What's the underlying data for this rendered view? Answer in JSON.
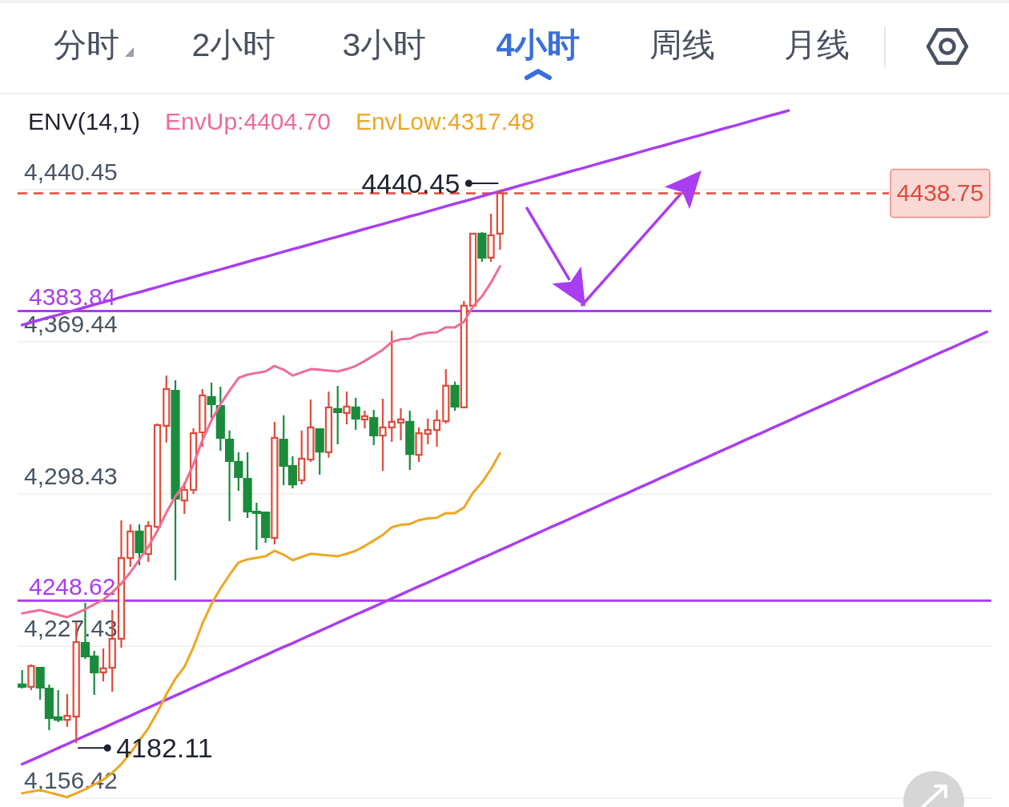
{
  "chart_data": {
    "type": "candlestick",
    "title": "4小时",
    "annotations": [
      "分时",
      "2小时",
      "3小时",
      "周线",
      "月线",
      {
        "text": "4440.45",
        "y": 4440.45
      },
      "4182.11"
    ],
    "legend_title": "ENV(14,1)",
    "legend": "top left",
    "tick_labels": "y",
    "grid": "y",
    "categories": [
      null,
      null,
      null,
      null,
      null,
      null,
      null,
      null,
      null,
      null,
      null,
      null,
      null,
      null,
      null,
      null,
      null,
      null,
      null,
      null,
      null,
      null,
      null,
      null,
      null,
      null,
      null,
      null,
      null,
      null,
      null,
      null,
      null,
      null,
      null,
      null,
      null,
      null,
      null,
      null,
      null,
      null,
      null,
      null,
      null,
      null,
      null,
      null,
      null,
      null,
      null,
      null,
      null,
      null,
      null,
      null,
      null,
      null,
      null,
      null,
      null,
      null,
      null,
      null,
      null,
      null,
      null,
      null,
      null,
      null,
      null,
      null,
      null,
      null,
      null,
      null,
      null,
      null,
      null,
      null,
      null,
      null,
      null,
      null,
      null,
      null,
      null,
      null,
      null,
      null,
      null,
      null,
      null,
      null,
      null,
      null,
      null,
      null,
      null,
      null,
      null,
      null,
      null,
      null,
      null,
      null,
      null,
      null
    ],
    "ohlc": [
      [
        4209.5,
        4216.2,
        4207.6,
        4208.4
      ],
      [
        4208.4,
        4218.8,
        4206.9,
        4218.1
      ],
      [
        4217.3,
        4217.3,
        4202.4,
        4208.0
      ],
      [
        4207.6,
        4209.5,
        4188.2,
        4193.8
      ],
      [
        4194.2,
        4206.9,
        4191.9,
        4193.0
      ],
      [
        4193.0,
        4205.0,
        4189.7,
        4194.9
      ],
      [
        4194.5,
        4238.6,
        4182.11,
        4229.3
      ],
      [
        4228.9,
        4247.6,
        4221.4,
        4222.6
      ],
      [
        4222.6,
        4225.2,
        4204.6,
        4215.1
      ],
      [
        4215.1,
        4226.3,
        4211.0,
        4217.0
      ],
      [
        4217.3,
        4244.2,
        4206.1,
        4230.8
      ],
      [
        4230.8,
        4286.1,
        4226.7,
        4268.5
      ],
      [
        4268.5,
        4284.2,
        4264.4,
        4280.9
      ],
      [
        4280.9,
        4284.2,
        4265.2,
        4271.2
      ],
      [
        4270.4,
        4285.7,
        4266.7,
        4283.5
      ],
      [
        4283.1,
        4331.3,
        4282.4,
        4330.6
      ],
      [
        4330.2,
        4353.7,
        4322.4,
        4347.4
      ],
      [
        4346.6,
        4351.5,
        4258.1,
        4296.2
      ],
      [
        4295.4,
        4304.0,
        4289.1,
        4300.3
      ],
      [
        4300.3,
        4329.1,
        4298.4,
        4326.8
      ],
      [
        4327.2,
        4347.4,
        4320.5,
        4344.4
      ],
      [
        4343.7,
        4350.4,
        4333.9,
        4340.3
      ],
      [
        4339.5,
        4348.5,
        4318.6,
        4324.6
      ],
      [
        4323.8,
        4328.0,
        4285.7,
        4313.8
      ],
      [
        4313.4,
        4317.9,
        4299.9,
        4306.3
      ],
      [
        4305.5,
        4317.9,
        4287.2,
        4290.2
      ],
      [
        4290.2,
        4294.3,
        4272.3,
        4289.5
      ],
      [
        4289.8,
        4290.2,
        4275.6,
        4278.3
      ],
      [
        4277.9,
        4332.1,
        4274.9,
        4324.6
      ],
      [
        4323.8,
        4335.1,
        4302.5,
        4311.5
      ],
      [
        4311.5,
        4316.0,
        4301.0,
        4302.9
      ],
      [
        4304.8,
        4328.0,
        4302.9,
        4314.9
      ],
      [
        4314.5,
        4342.5,
        4313.4,
        4329.5
      ],
      [
        4328.7,
        4329.1,
        4307.4,
        4318.2
      ],
      [
        4317.9,
        4346.3,
        4315.3,
        4338.8
      ],
      [
        4338.1,
        4348.9,
        4321.6,
        4336.6
      ],
      [
        4336.2,
        4346.3,
        4330.9,
        4339.2
      ],
      [
        4338.8,
        4343.3,
        4328.3,
        4333.6
      ],
      [
        4333.2,
        4337.3,
        4329.1,
        4334.7
      ],
      [
        4333.9,
        4337.7,
        4321.2,
        4325.7
      ],
      [
        4325.7,
        4342.9,
        4309.3,
        4329.5
      ],
      [
        4329.5,
        4374.7,
        4322.7,
        4332.1
      ],
      [
        4331.7,
        4338.4,
        4323.5,
        4333.2
      ],
      [
        4332.1,
        4337.3,
        4309.6,
        4317.1
      ],
      [
        4316.7,
        4329.5,
        4313.4,
        4326.8
      ],
      [
        4326.5,
        4333.6,
        4321.6,
        4328.3
      ],
      [
        4328.3,
        4337.7,
        4320.5,
        4332.8
      ],
      [
        4332.4,
        4356.7,
        4331.3,
        4348.9
      ],
      [
        4348.9,
        4350.8,
        4337.3,
        4339.2
      ],
      [
        4338.8,
        4388.5,
        4338.4,
        4386.3
      ],
      [
        4386.3,
        4419.9,
        4385.5,
        4419.9
      ],
      [
        4419.9,
        4420.6,
        4406.8,
        4408.7
      ],
      [
        4408.7,
        4429.2,
        4406.8,
        4419.2
      ],
      [
        4419.9,
        4440.45,
        4412.4,
        4438.75
      ],
      null,
      null,
      null,
      null,
      null,
      null,
      null,
      null,
      null,
      null,
      null,
      null,
      null,
      null,
      null,
      null,
      null,
      null,
      null,
      null,
      null,
      null,
      null,
      null,
      null,
      null,
      null,
      null,
      null,
      null,
      null,
      null,
      null,
      null,
      null,
      null,
      null,
      null,
      null,
      null,
      null,
      null,
      null,
      null,
      null,
      null,
      null,
      null,
      null,
      null,
      null,
      null,
      null,
      null
    ],
    "colors": [
      "#1a8c3c",
      "#e04b3a",
      "#1a8c3c",
      "#1a8c3c",
      "#1a8c3c",
      "#e04b3a",
      "#e04b3a",
      "#1a8c3c",
      "#1a8c3c",
      "#e04b3a",
      "#e04b3a",
      "#e04b3a",
      "#e04b3a",
      "#1a8c3c",
      "#e04b3a",
      "#e04b3a",
      "#e04b3a",
      "#1a8c3c",
      "#e04b3a",
      "#e04b3a",
      "#e04b3a",
      "#1a8c3c",
      "#1a8c3c",
      "#1a8c3c",
      "#1a8c3c",
      "#1a8c3c",
      "#1a8c3c",
      "#1a8c3c",
      "#e04b3a",
      "#1a8c3c",
      "#1a8c3c",
      "#e04b3a",
      "#e04b3a",
      "#1a8c3c",
      "#e04b3a",
      "#1a8c3c",
      "#e04b3a",
      "#1a8c3c",
      "#e04b3a",
      "#1a8c3c",
      "#e04b3a",
      "#e04b3a",
      "#e04b3a",
      "#1a8c3c",
      "#e04b3a",
      "#e04b3a",
      "#e04b3a",
      "#e04b3a",
      "#1a8c3c",
      "#e04b3a",
      "#e04b3a",
      "#1a8c3c",
      "#e04b3a",
      "#e04b3a",
      null,
      null,
      null,
      null,
      null,
      null,
      null,
      null,
      null,
      null,
      null,
      null,
      null,
      null,
      null,
      null,
      null,
      null,
      null,
      null,
      null,
      null,
      null,
      null,
      null,
      null,
      null,
      null,
      null,
      null,
      null,
      null,
      null,
      null,
      null,
      null,
      null,
      null,
      null,
      null,
      null,
      null,
      null,
      null,
      null,
      null,
      null,
      null,
      null,
      null,
      null,
      null,
      null,
      null
    ],
    "series": [
      {
        "name": "EnvUp:4404.70",
        "type": "line",
        "color": "#ef6d95",
        "values": [
          4242.7,
          4243.5,
          4244.2,
          4243.1,
          4242.0,
          4240.9,
          4242.7,
          4244.6,
          4246.9,
          4249.1,
          4252.5,
          4256.6,
          4261.8,
          4267.8,
          4273.8,
          4281.2,
          4289.8,
          4297.3,
          4302.9,
          4312.3,
          4323.5,
          4332.8,
          4340.3,
          4346.6,
          4352.6,
          4354.1,
          4354.9,
          4355.6,
          4358.2,
          4356.4,
          4353.7,
          4355.2,
          4356.7,
          4356.4,
          4356.0,
          4355.6,
          4356.7,
          4358.2,
          4360.5,
          4363.1,
          4365.7,
          4369.4,
          4370.6,
          4370.9,
          4372.8,
          4373.6,
          4373.9,
          4376.2,
          4376.2,
          4378.8,
          4385.9,
          4390.7,
          4397.1,
          4404.7,
          null,
          null,
          null,
          null,
          null,
          null,
          null,
          null,
          null,
          null,
          null,
          null,
          null,
          null,
          null,
          null,
          null,
          null,
          null,
          null,
          null,
          null,
          null,
          null,
          null,
          null,
          null,
          null,
          null,
          null,
          null,
          null,
          null,
          null,
          null,
          null,
          null,
          null,
          null,
          null,
          null,
          null,
          null,
          null,
          null,
          null,
          null,
          null,
          null,
          null,
          null,
          null,
          null,
          null
        ]
      },
      {
        "name": "EnvLow:4317.48",
        "type": "line",
        "color": "#eca723",
        "values": [
          4158.7,
          4159.5,
          4160.2,
          4159.1,
          4158.0,
          4156.9,
          4158.7,
          4160.6,
          4162.8,
          4165.0,
          4168.3,
          4172.3,
          4177.4,
          4183.3,
          4189.1,
          4196.5,
          4204.9,
          4212.2,
          4217.7,
          4226.9,
          4237.9,
          4247.0,
          4254.3,
          4260.6,
          4266.4,
          4267.9,
          4268.6,
          4269.4,
          4271.9,
          4270.1,
          4267.5,
          4269.0,
          4270.5,
          4270.1,
          4269.7,
          4269.4,
          4270.5,
          4271.9,
          4274.1,
          4276.7,
          4279.3,
          4282.9,
          4284.0,
          4284.4,
          4286.2,
          4287.0,
          4287.3,
          4289.5,
          4289.5,
          4292.1,
          4299.0,
          4303.8,
          4310.0,
          4317.48,
          null,
          null,
          null,
          null,
          null,
          null,
          null,
          null,
          null,
          null,
          null,
          null,
          null,
          null,
          null,
          null,
          null,
          null,
          null,
          null,
          null,
          null,
          null,
          null,
          null,
          null,
          null,
          null,
          null,
          null,
          null,
          null,
          null,
          null,
          null,
          null,
          null,
          null,
          null,
          null,
          null,
          null,
          null,
          null,
          null,
          null,
          null,
          null,
          null,
          null,
          null,
          null,
          null,
          null
        ]
      },
      {
        "type": "line",
        "color": "#a93ef0",
        "values": [
          4377.3,
          4378.5,
          4379.7,
          4380.9,
          4382.0,
          4383.2,
          4384.4,
          4385.6,
          4386.8,
          4387.9,
          4389.1,
          4390.3,
          4391.5,
          4392.6,
          4393.8,
          4395.0,
          4396.2,
          4397.4,
          4398.5,
          4399.7,
          4400.9,
          4402.1,
          4403.2,
          4404.4,
          4405.6,
          4406.8,
          4408.0,
          4409.1,
          4410.3,
          4411.5,
          4412.7,
          4413.8,
          4415.0,
          4416.2,
          4417.4,
          4418.5,
          4419.7,
          4420.9,
          4422.1,
          4423.3,
          4424.4,
          4425.6,
          4426.8,
          4428.0,
          4429.1,
          4430.3,
          4431.5,
          4432.7,
          4433.9,
          4435.0,
          4436.2,
          4437.4,
          4438.6,
          4439.7,
          4440.9,
          4442.1,
          4443.3,
          4444.4,
          4445.6,
          4446.8,
          4448.0,
          4449.2,
          4450.3,
          4451.5,
          4452.7,
          4453.9,
          4455.0,
          4456.2,
          4457.4,
          4458.6,
          4459.8,
          4460.9,
          4462.1,
          4463.3,
          4464.5,
          4465.6,
          4466.8,
          4468.0,
          4469.2,
          4470.3,
          4471.5,
          4472.7,
          4473.9,
          4475.1,
          4476.2,
          4477.4,
          null,
          null,
          null,
          null,
          null,
          null,
          null,
          null,
          null,
          null,
          null,
          null,
          null,
          null,
          null,
          null,
          null,
          null,
          null,
          null,
          null,
          null
        ]
      },
      {
        "type": "line",
        "color": "#a93ef0",
        "values": [
          4172.3,
          4174.1,
          4176.0,
          4177.9,
          4179.8,
          4181.7,
          4183.6,
          4185.5,
          4187.4,
          4189.2,
          4191.1,
          4193.0,
          4194.9,
          4196.8,
          4198.7,
          4200.6,
          4202.4,
          4204.3,
          4206.2,
          4208.1,
          4210.0,
          4211.9,
          4213.8,
          4215.6,
          4217.5,
          4219.4,
          4221.3,
          4223.2,
          4225.1,
          4227.0,
          4228.8,
          4230.7,
          4232.6,
          4234.5,
          4236.4,
          4238.3,
          4240.2,
          4242.1,
          4243.9,
          4245.8,
          4247.7,
          4249.6,
          4251.5,
          4253.4,
          4255.3,
          4257.1,
          4259.0,
          4260.9,
          4262.8,
          4264.7,
          4266.6,
          4268.5,
          4270.3,
          4272.2,
          4274.1,
          4276.0,
          4277.9,
          4279.8,
          4281.7,
          4283.6,
          4285.4,
          4287.3,
          4289.2,
          4291.1,
          4293.0,
          4294.9,
          4296.8,
          4298.6,
          4300.5,
          4302.4,
          4304.3,
          4306.2,
          4308.1,
          4310.0,
          4311.8,
          4313.7,
          4315.6,
          4317.5,
          4319.4,
          4321.3,
          4323.2,
          4325.1,
          4326.9,
          4328.8,
          4330.7,
          4332.6,
          4334.5,
          4336.4,
          4338.3,
          4340.1,
          4342.0,
          4343.9,
          4345.8,
          4347.7,
          4349.6,
          4351.5,
          4353.3,
          4355.2,
          4357.1,
          4359.0,
          4360.9,
          4362.8,
          4364.7,
          4366.5,
          4368.4,
          4370.3,
          4372.2,
          4374.1
        ]
      }
    ],
    "ylim": [
      4156.42,
      4484.9
    ],
    "yticks": [
      {
        "value": 4156.42,
        "label": "4,156.42"
      },
      {
        "value": 4227.43,
        "label": "4,227.43"
      },
      {
        "value": 4298.43,
        "label": "4,298.43"
      },
      {
        "value": 4369.44,
        "label": "4,369.44"
      },
      {
        "value": 4440.45,
        "label": "4,440.45"
      }
    ],
    "ref_lines": [
      {
        "axis": "y",
        "value": 4438.75,
        "label": "4438.75",
        "color": "#e04b3a",
        "line_style": "dashed"
      },
      {
        "axis": "y",
        "value": 4383.84,
        "label": "4383.84",
        "color": "#a93ef0"
      },
      {
        "axis": "y",
        "value": 4248.62,
        "label": "4248.62",
        "color": "#a93ef0"
      }
    ]
  }
}
